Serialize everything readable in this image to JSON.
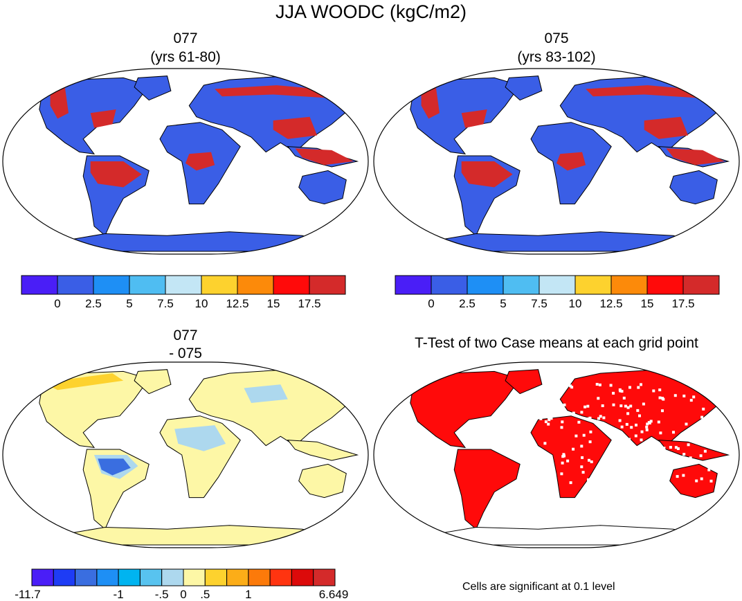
{
  "title": "JJA WOODC (kgC/m2)",
  "panels": [
    {
      "line1": "077",
      "line2": "(yrs 61-80)"
    },
    {
      "line1": "075",
      "line2": "(yrs 83-102)"
    },
    {
      "line1": "077",
      "line2": "- 075"
    },
    {
      "line1": "T-Test of two Case means at each grid point",
      "line2": ""
    }
  ],
  "colorbar_top": {
    "colors": [
      "#4a1ef7",
      "#3a5ee6",
      "#1e8ff5",
      "#4fbdf2",
      "#c3e6f5",
      "#fdd22e",
      "#fc8a0a",
      "#ff0a0a",
      "#d42a2a"
    ],
    "labels": [
      "0",
      "2.5",
      "5",
      "7.5",
      "10",
      "12.5",
      "15",
      "17.5"
    ]
  },
  "colorbar_diff": {
    "colors": [
      "#4a1ef7",
      "#1e3cf5",
      "#3a6ee0",
      "#1e8ff5",
      "#00b4f0",
      "#58c3ef",
      "#add8ee",
      "#fdf7a6",
      "#fdd22e",
      "#fcad18",
      "#fc7a0a",
      "#ff3410",
      "#dc0a0a",
      "#d42a2a"
    ],
    "labels": [
      "-11.7",
      "-1",
      "-.5",
      "0",
      ".5",
      "1",
      "6.649"
    ]
  },
  "significance_note": "Cells are significant at 0.1 level",
  "map_colors": {
    "land_low": "#3a5ee6",
    "land_high": "#d42a2a",
    "diff_base": "#fdf7a6",
    "significant": "#ff0a0a",
    "ocean": "#ffffff",
    "coast": "#000000"
  }
}
